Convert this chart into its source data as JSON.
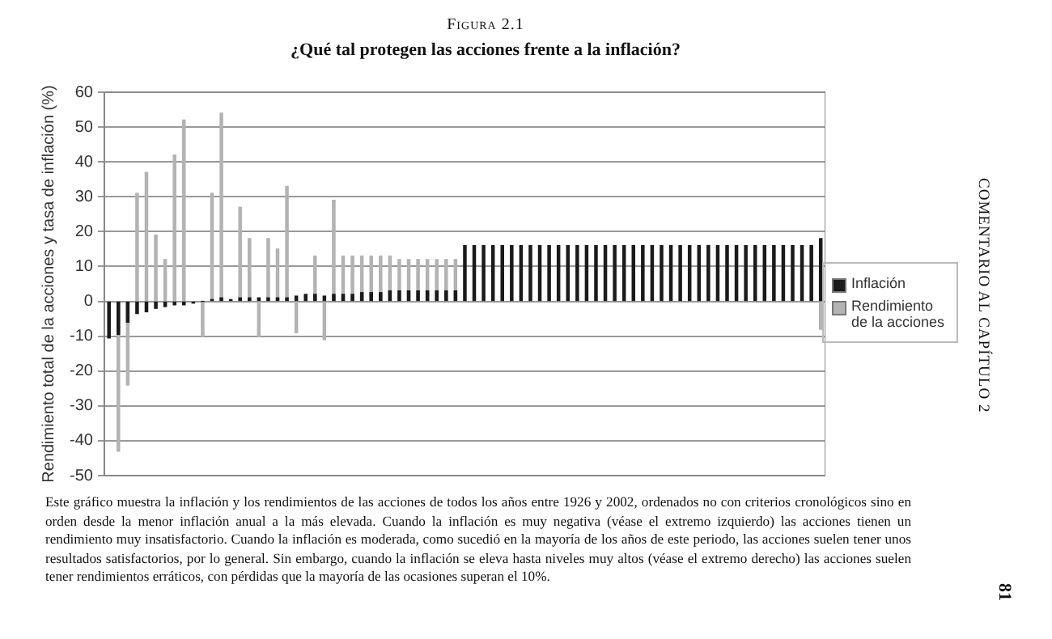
{
  "chart_data": {
    "type": "bar",
    "title": "¿Qué tal protegen las acciones frente a la inflación?",
    "subtitle": "Figura 2.1",
    "ylabel": "Rendimiento total de la acciones y tasa de inflación (%)",
    "annotations": [
      "Este gráfico muestra la inflación y los rendimientos de las acciones de todos los años entre 1926 y 2002, ordenados no con criterios cronológicos sino en orden desde la menor inflación anual a la más elevada. Cuando la inflación es muy negativa (véase el extremo izquierdo) las acciones tienen un rendimiento muy insatisfactorio. Cuando la inflación es moderada, como sucedió en la mayoría de los años de este periodo, las acciones suelen tener unos resultados satisfactorios, por lo general. Sin embargo, cuando la inflación se eleva hasta niveles muy altos (véase el extremo derecho) las acciones suelen tener rendimientos erráticos, con pérdidas que la mayoría de las ocasiones superan el 10%.",
      "COMENTARIO AL CAPÍTULO 2",
      "81"
    ],
    "categories": [
      null,
      null,
      null,
      null,
      null,
      null,
      null,
      null,
      null,
      null,
      null,
      null,
      null,
      null,
      null,
      null,
      null,
      null,
      null,
      null,
      null,
      null,
      null,
      null,
      null,
      null,
      null,
      null,
      null,
      null,
      null,
      null,
      null,
      null,
      null,
      null,
      null,
      null,
      null,
      null,
      null,
      null,
      null,
      null,
      null,
      null,
      null,
      null,
      null,
      null,
      null,
      null,
      null,
      null,
      null,
      null,
      null,
      null,
      null,
      null,
      null,
      null,
      null,
      null,
      null,
      null,
      null,
      null,
      null,
      null,
      null,
      null,
      null,
      null,
      null,
      null,
      null
    ],
    "series": [
      {
        "name": "Inflación",
        "color": "#1a1a1a",
        "values": [
          -10.5,
          -9.5,
          -6,
          -3.5,
          -3,
          -2,
          -1.5,
          -1,
          -1,
          -0.5,
          0,
          0.5,
          1,
          0.5,
          1,
          1,
          1,
          1,
          1,
          1,
          1.5,
          2,
          2,
          1.5,
          2,
          2,
          2,
          2.5,
          2.5,
          2.5,
          3,
          3,
          3,
          3,
          3,
          3,
          3,
          3,
          16,
          16,
          16,
          16,
          16,
          16,
          16,
          16,
          16,
          16,
          16,
          16,
          16,
          16,
          16,
          16,
          16,
          16,
          16,
          16,
          16,
          16,
          16,
          16,
          16,
          16,
          16,
          16,
          16,
          16,
          16,
          16,
          16,
          16,
          16,
          16,
          16,
          16,
          18
        ]
      },
      {
        "name": "Rendimiento de la acciones",
        "color": "#b3b3b3",
        "values": [
          null,
          -43,
          -24,
          31,
          37,
          19,
          12,
          42,
          52,
          null,
          -10,
          31,
          54,
          null,
          27,
          18,
          -10,
          18,
          15,
          33,
          -9,
          null,
          13,
          -11,
          29,
          13,
          13,
          13,
          13,
          13,
          13,
          12,
          12,
          12,
          12,
          12,
          12,
          12,
          null,
          null,
          null,
          null,
          null,
          null,
          null,
          null,
          null,
          null,
          null,
          null,
          null,
          null,
          null,
          null,
          null,
          null,
          null,
          null,
          null,
          null,
          null,
          null,
          null,
          null,
          null,
          null,
          null,
          null,
          null,
          null,
          null,
          null,
          null,
          null,
          null,
          null,
          -8
        ]
      }
    ],
    "ylim": [
      -50,
      60
    ],
    "yticks": [
      -50,
      -40,
      -30,
      -20,
      -10,
      0,
      10,
      20,
      30,
      40,
      50,
      60
    ],
    "grid": "y",
    "legend": "right"
  }
}
